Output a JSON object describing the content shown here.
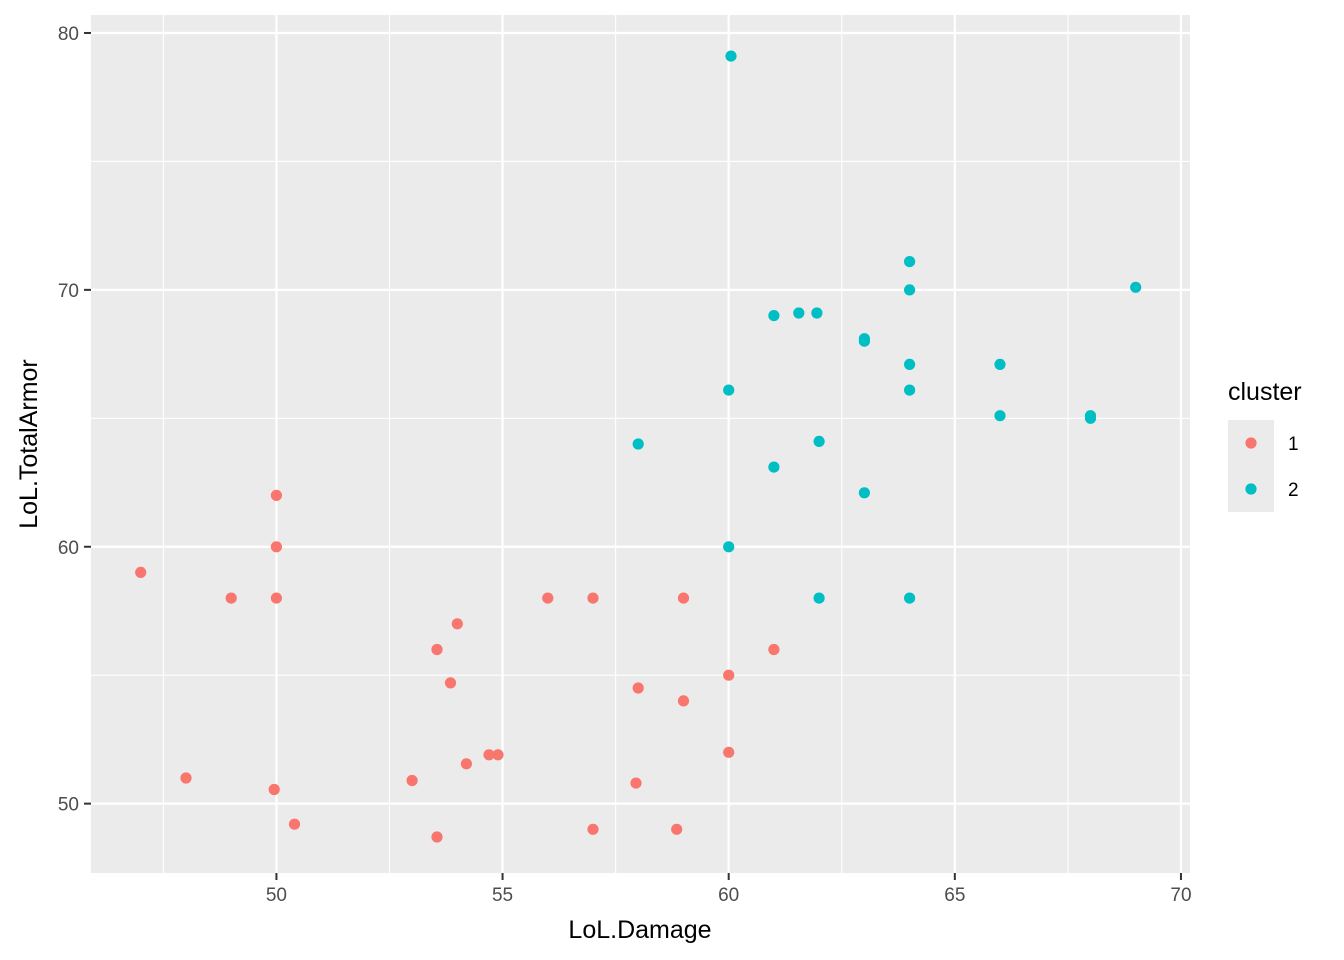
{
  "chart_data": {
    "type": "scatter",
    "title": "",
    "xlabel": "LoL.Damage",
    "ylabel": "LoL.TotalArmor",
    "xlim": [
      45.9,
      70.2
    ],
    "ylim": [
      47.3,
      80.7
    ],
    "x_ticks": [
      50,
      55,
      60,
      65,
      70
    ],
    "y_ticks": [
      50,
      60,
      70,
      80
    ],
    "x_tick_labels": [
      "50",
      "55",
      "60",
      "65",
      "70"
    ],
    "y_tick_labels": [
      "50",
      "60",
      "70",
      "80"
    ],
    "grid": true,
    "legend": {
      "title": "cluster",
      "position": "right",
      "entries": [
        {
          "label": "1",
          "color": "#F8766D"
        },
        {
          "label": "2",
          "color": "#00BFC4"
        }
      ]
    },
    "series": [
      {
        "name": "1",
        "color": "#F8766D",
        "points": [
          [
            47,
            59
          ],
          [
            48,
            51
          ],
          [
            49,
            58
          ],
          [
            50,
            62
          ],
          [
            50,
            60
          ],
          [
            50,
            58
          ],
          [
            49.95,
            50.55
          ],
          [
            50.4,
            49.2
          ],
          [
            53,
            50.9
          ],
          [
            53.55,
            56
          ],
          [
            53.55,
            48.7
          ],
          [
            53.85,
            54.7
          ],
          [
            54,
            57
          ],
          [
            54.2,
            51.55
          ],
          [
            54.7,
            51.9
          ],
          [
            54.9,
            51.9
          ],
          [
            56,
            58
          ],
          [
            57,
            58
          ],
          [
            57,
            49
          ],
          [
            58,
            54.5
          ],
          [
            57.95,
            50.8
          ],
          [
            58.85,
            49
          ],
          [
            59,
            58
          ],
          [
            59,
            54
          ],
          [
            60,
            55
          ],
          [
            60,
            52
          ],
          [
            61,
            56
          ]
        ]
      },
      {
        "name": "2",
        "color": "#00BFC4",
        "points": [
          [
            60.05,
            79.1
          ],
          [
            58,
            64
          ],
          [
            60,
            66.1
          ],
          [
            60,
            60
          ],
          [
            61,
            69
          ],
          [
            61,
            63.1
          ],
          [
            61.55,
            69.1
          ],
          [
            61.95,
            69.1
          ],
          [
            62,
            64.1
          ],
          [
            62,
            58
          ],
          [
            63,
            68.1
          ],
          [
            63,
            68
          ],
          [
            63,
            62.1
          ],
          [
            64,
            71.1
          ],
          [
            64,
            70
          ],
          [
            64,
            67.1
          ],
          [
            64,
            66.1
          ],
          [
            64,
            58
          ],
          [
            66,
            67.1
          ],
          [
            66,
            65.1
          ],
          [
            68,
            65.1
          ],
          [
            68,
            65
          ],
          [
            69,
            70.1
          ]
        ]
      }
    ]
  }
}
